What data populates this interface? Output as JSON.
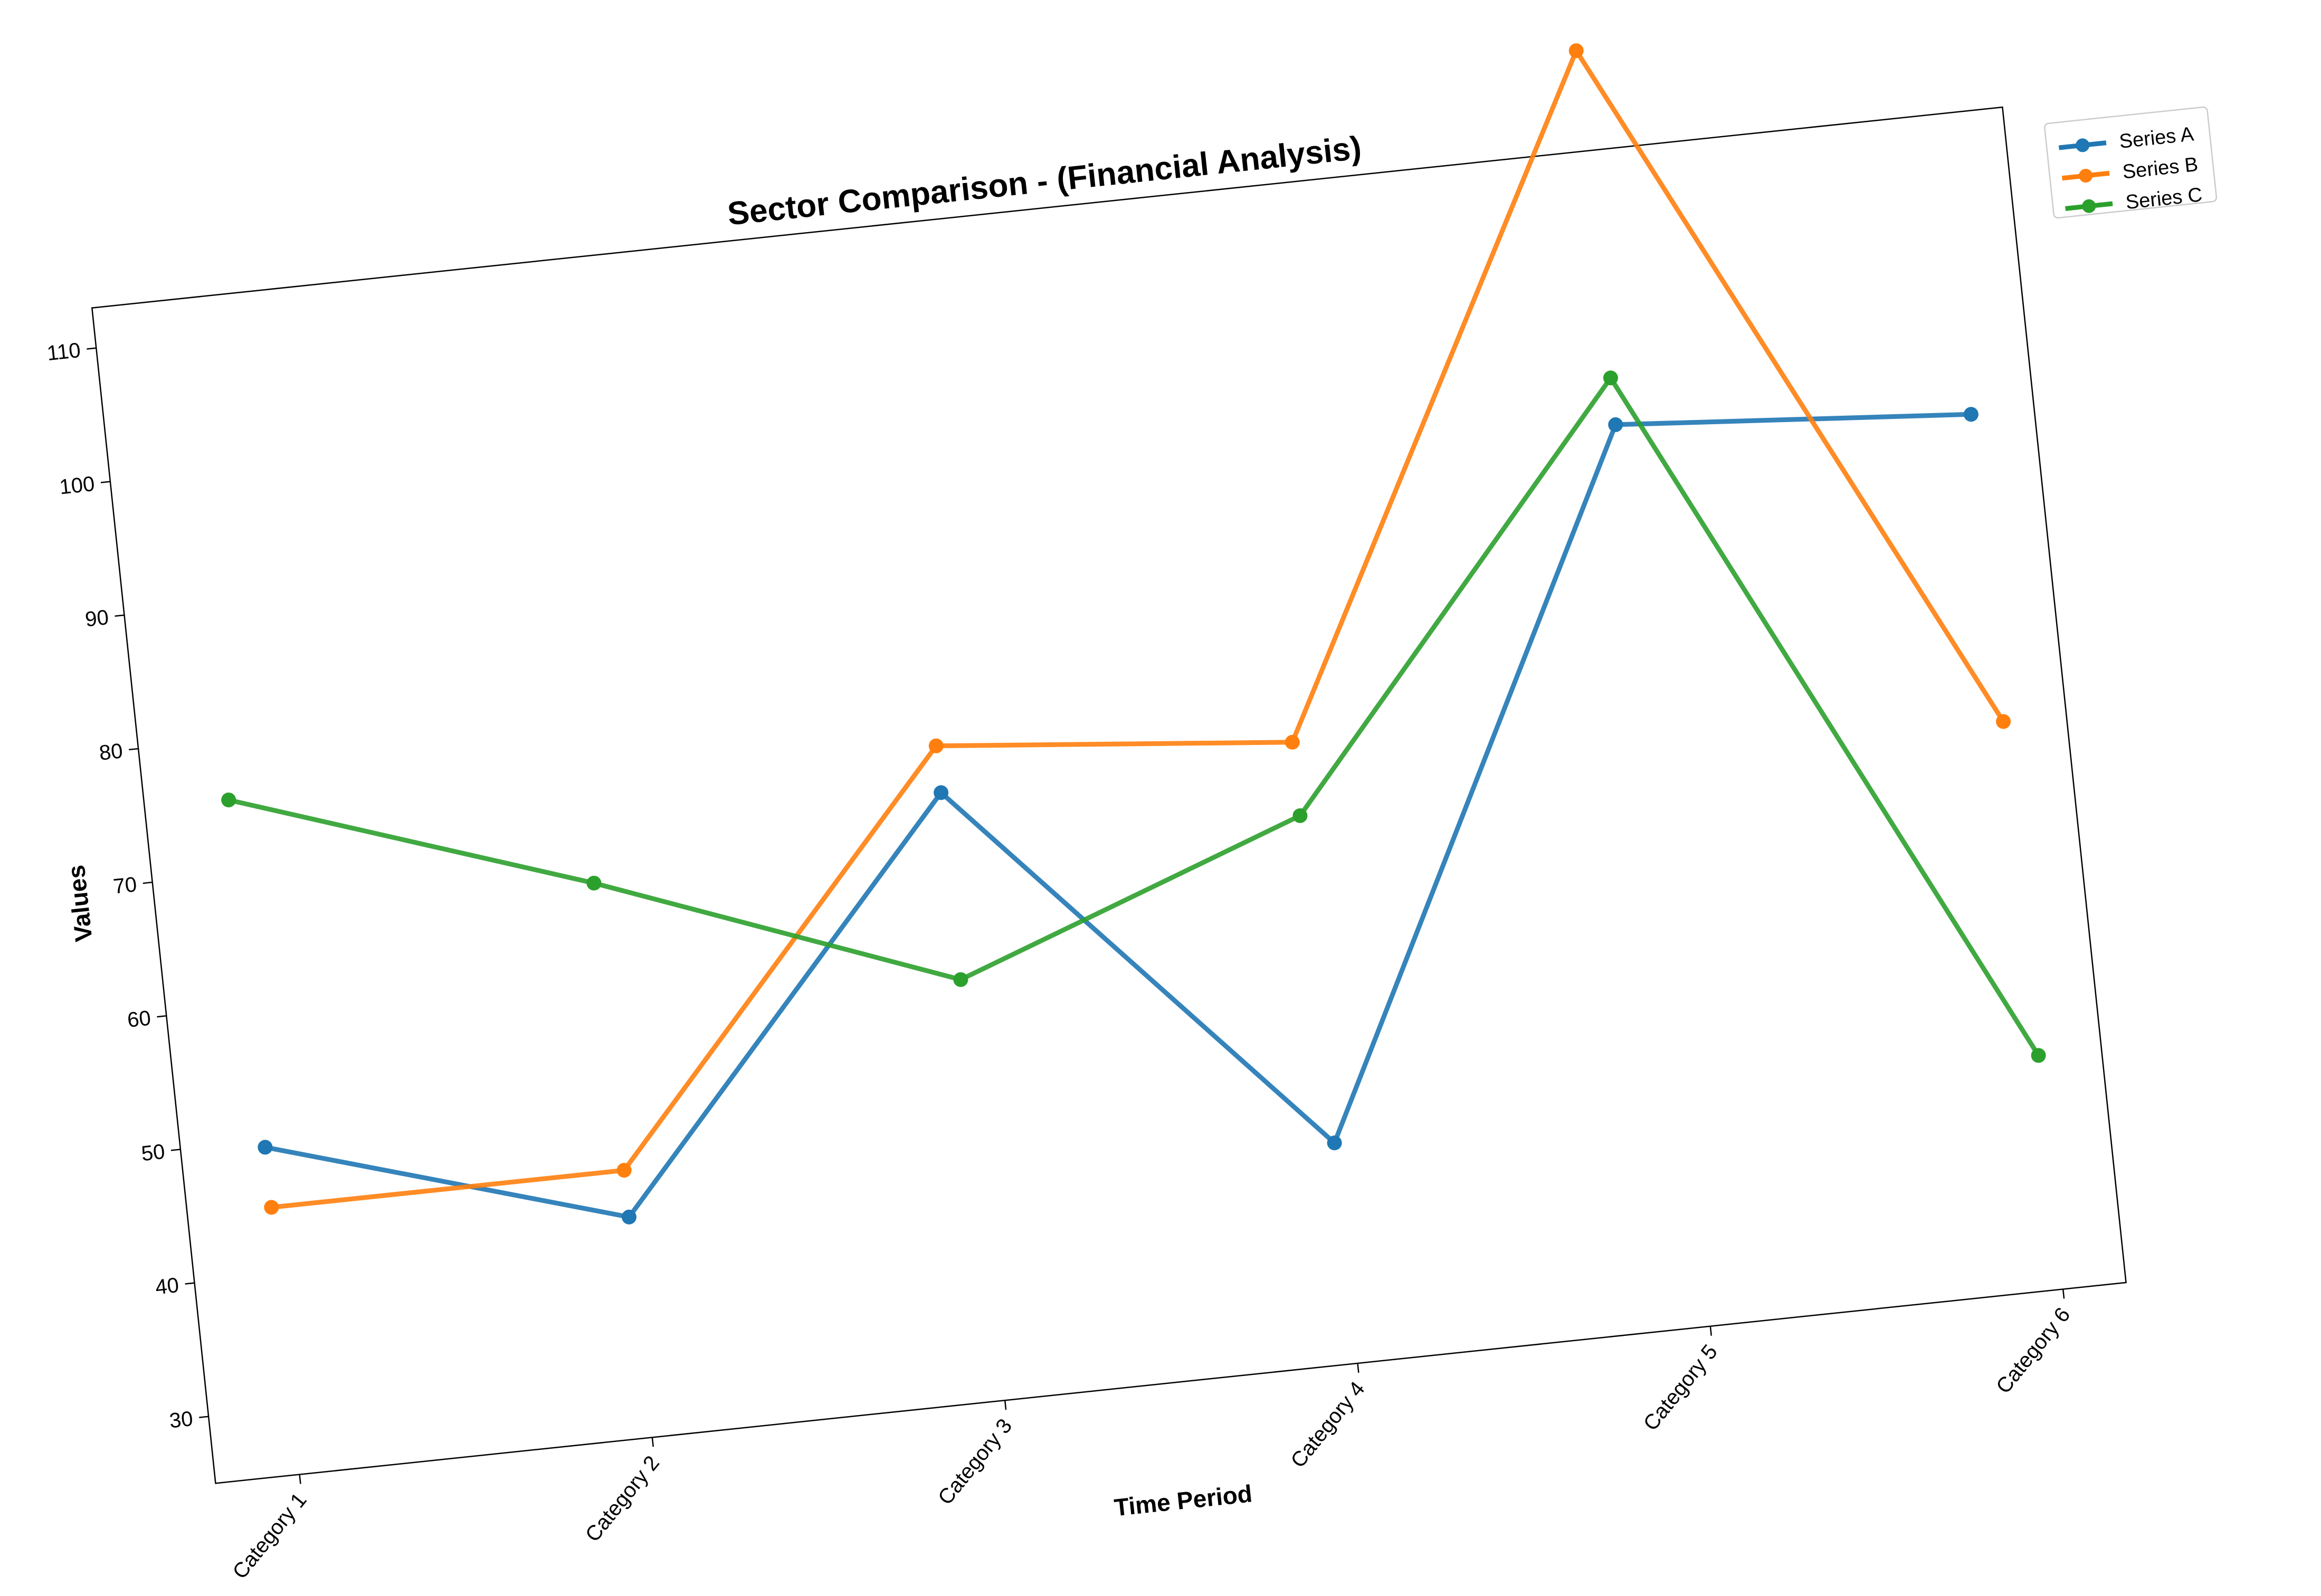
{
  "chart_data": {
    "type": "line",
    "title": "Sector Comparison - (Financial Analysis)",
    "xlabel": "Time Period",
    "ylabel": "Values",
    "categories": [
      "Category 1",
      "Category 2",
      "Category 3",
      "Category 4",
      "Category 5",
      "Category 6"
    ],
    "yticks": [
      30,
      40,
      50,
      60,
      70,
      80,
      90,
      100,
      110
    ],
    "ylim": [
      25,
      113
    ],
    "grid": false,
    "legend_position": "top-right, outside plot",
    "series": [
      {
        "name": "Series A",
        "color": "#1f77b4",
        "values": [
          49.5,
          41.5,
          70.5,
          41.5,
          92.5,
          90.5
        ]
      },
      {
        "name": "Series B",
        "color": "#ff7f0e",
        "values": [
          45.0,
          45.0,
          74.0,
          71.5,
          120.5,
          67.5
        ]
      },
      {
        "name": "Series C",
        "color": "#2ca02c",
        "values": [
          75.5,
          66.5,
          56.5,
          66.0,
          96.0,
          42.5
        ]
      }
    ]
  }
}
